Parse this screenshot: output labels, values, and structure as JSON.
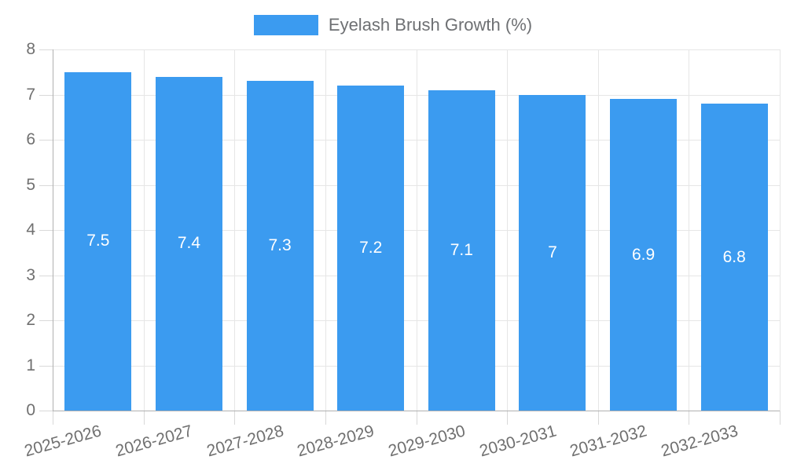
{
  "chart_data": {
    "type": "bar",
    "title": "Eyelash Brush Growth (%)",
    "categories": [
      "2025-2026",
      "2026-2027",
      "2027-2028",
      "2028-2029",
      "2029-2030",
      "2030-2031",
      "2031-2032",
      "2032-2033"
    ],
    "values": [
      7.5,
      7.4,
      7.3,
      7.2,
      7.1,
      7,
      6.9,
      6.8
    ],
    "xlabel": "",
    "ylabel": "",
    "ylim": [
      0,
      8
    ],
    "yticks": [
      0,
      1,
      2,
      3,
      4,
      5,
      6,
      7,
      8
    ],
    "grid": true,
    "legend_position": "top",
    "bar_color": "#3b9bf0",
    "value_label_color": "#ffffff",
    "axis_label_color": "#707070",
    "grid_color": "#e6e6e6",
    "tick_color": "#d9d9d9",
    "axis_line_color": "#b0b0b0"
  }
}
